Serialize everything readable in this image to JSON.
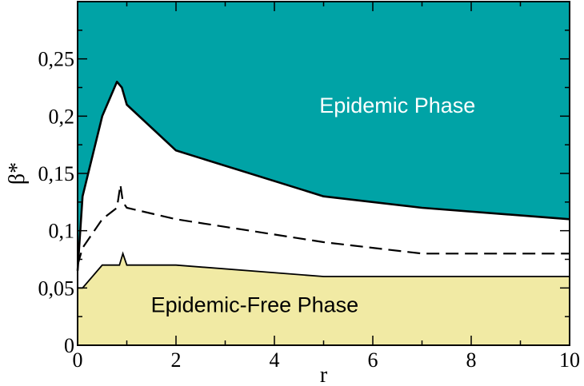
{
  "chart_data": {
    "type": "area",
    "xlabel": "r",
    "ylabel": "β*",
    "xlim": [
      0,
      10
    ],
    "ylim": [
      0,
      0.3
    ],
    "x_ticks": [
      0,
      2,
      4,
      6,
      8,
      10
    ],
    "x_tick_labels": [
      "0",
      "2",
      "4",
      "6",
      "8",
      "10"
    ],
    "y_ticks": [
      0,
      0.05,
      0.1,
      0.15,
      0.2,
      0.25
    ],
    "y_tick_labels": [
      "0",
      "0,05",
      "0,1",
      "0,15",
      "0,2",
      "0,25"
    ],
    "grid": false,
    "colors": {
      "epidemic_fill": "#00a3a6",
      "free_fill": "#f1eaa4",
      "middle_fill": "#ffffff",
      "line": "#000000"
    },
    "series": [
      {
        "style": "solid-thick",
        "x": [
          0,
          0.1,
          0.5,
          0.8,
          0.9,
          1.0,
          2,
          5,
          7,
          10
        ],
        "y": [
          0.065,
          0.13,
          0.2,
          0.23,
          0.225,
          0.21,
          0.17,
          0.13,
          0.12,
          0.11
        ]
      },
      {
        "style": "dashed",
        "x": [
          0,
          0.1,
          0.5,
          0.8,
          0.87,
          0.92,
          1.0,
          2,
          5,
          7,
          10
        ],
        "y": [
          0.07,
          0.085,
          0.11,
          0.12,
          0.14,
          0.125,
          0.12,
          0.11,
          0.09,
          0.08,
          0.08
        ]
      },
      {
        "style": "solid-thin",
        "x": [
          0,
          0.1,
          0.5,
          0.85,
          0.92,
          1.0,
          2,
          5,
          7,
          10
        ],
        "y": [
          0.05,
          0.05,
          0.07,
          0.07,
          0.08,
          0.07,
          0.07,
          0.06,
          0.06,
          0.06
        ]
      }
    ],
    "annotations": {
      "upper_region": "Epidemic Phase",
      "lower_region": "Epidemic-Free Phase"
    }
  }
}
